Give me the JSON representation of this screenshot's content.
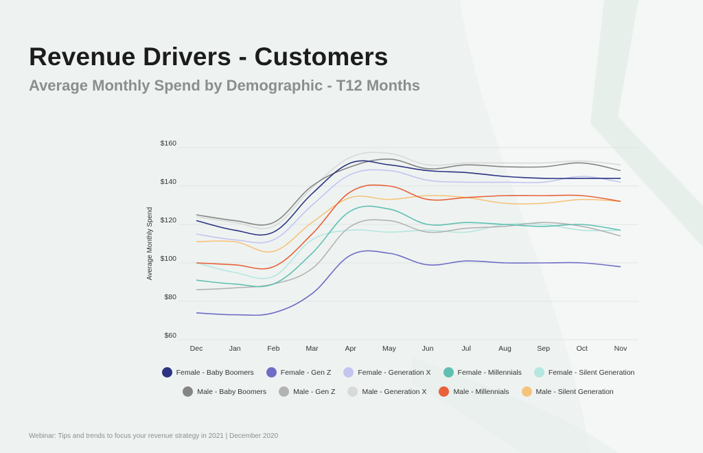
{
  "header": {
    "title": "Revenue Drivers - Customers",
    "subtitle": "Average Monthly Spend by Demographic - T12 Months"
  },
  "footer": {
    "text": "Webinar: Tips and trends to focus your revenue strategy in 2021  |  December 2020"
  },
  "chart_data": {
    "type": "line",
    "title": "",
    "xlabel": "",
    "ylabel": "Average Monthly Spend",
    "ylim": [
      60,
      160
    ],
    "yticks": [
      60,
      80,
      100,
      120,
      140,
      160
    ],
    "ytick_labels": [
      "$60",
      "$80",
      "$100",
      "$120",
      "$140",
      "$160"
    ],
    "grid": true,
    "legend_position": "bottom",
    "categories": [
      "Dec",
      "Jan",
      "Feb",
      "Mar",
      "Apr",
      "May",
      "Jun",
      "Jul",
      "Aug",
      "Sep",
      "Oct",
      "Nov"
    ],
    "series": [
      {
        "name": "Female - Baby Boomers",
        "color": "#2c3481",
        "values": [
          122,
          117,
          116,
          136,
          152,
          151,
          148,
          147,
          145,
          144,
          144,
          144
        ]
      },
      {
        "name": "Female - Gen Z",
        "color": "#6f6cc6",
        "values": [
          74,
          73,
          74,
          84,
          104,
          105,
          99,
          101,
          100,
          100,
          100,
          98
        ]
      },
      {
        "name": "Female - Generation X",
        "color": "#c4c4f0",
        "values": [
          115,
          112,
          112,
          130,
          146,
          148,
          143,
          142,
          142,
          142,
          145,
          142
        ]
      },
      {
        "name": "Female - Millennials",
        "color": "#5fbfb2",
        "values": [
          91,
          89,
          89,
          105,
          127,
          128,
          120,
          121,
          120,
          119,
          120,
          117
        ]
      },
      {
        "name": "Female - Silent Generation",
        "color": "#b5e6df",
        "values": [
          100,
          95,
          93,
          112,
          117,
          116,
          117,
          116,
          120,
          120,
          117,
          117
        ]
      },
      {
        "name": "Male - Baby Boomers",
        "color": "#858585",
        "values": [
          125,
          122,
          121,
          140,
          150,
          154,
          149,
          151,
          150,
          150,
          152,
          148
        ]
      },
      {
        "name": "Male - Gen Z",
        "color": "#b3b3b3",
        "values": [
          86,
          87,
          89,
          97,
          119,
          122,
          116,
          118,
          119,
          121,
          119,
          114
        ]
      },
      {
        "name": "Male - Generation X",
        "color": "#d9d9d9",
        "values": [
          124,
          121,
          119,
          139,
          155,
          157,
          151,
          152,
          152,
          152,
          153,
          151
        ]
      },
      {
        "name": "Male - Millennials",
        "color": "#e8613a",
        "values": [
          100,
          99,
          98,
          115,
          137,
          140,
          133,
          134,
          135,
          135,
          135,
          132
        ]
      },
      {
        "name": "Male - Silent Generation",
        "color": "#f6c37c",
        "values": [
          111,
          111,
          106,
          121,
          134,
          133,
          135,
          134,
          131,
          131,
          133,
          132
        ]
      }
    ]
  }
}
